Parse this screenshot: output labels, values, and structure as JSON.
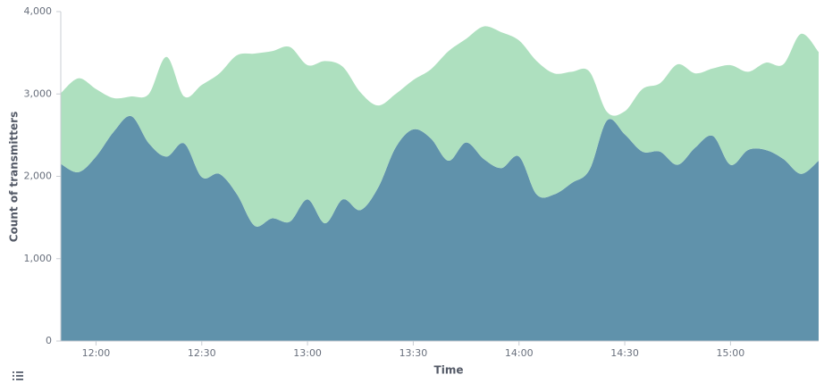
{
  "chart_data": {
    "type": "stacked-area",
    "x": [
      "11:50",
      "11:55",
      "12:00",
      "12:05",
      "12:10",
      "12:15",
      "12:20",
      "12:25",
      "12:30",
      "12:35",
      "12:40",
      "12:45",
      "12:50",
      "12:55",
      "13:00",
      "13:05",
      "13:10",
      "13:15",
      "13:20",
      "13:25",
      "13:30",
      "13:35",
      "13:40",
      "13:45",
      "13:50",
      "13:55",
      "14:00",
      "14:05",
      "14:10",
      "14:15",
      "14:20",
      "14:25",
      "14:30",
      "14:35",
      "14:40",
      "14:45",
      "14:50",
      "14:55",
      "15:00",
      "15:05",
      "15:10",
      "15:15",
      "15:20",
      "15:25"
    ],
    "series": [
      {
        "color": "#6092ab",
        "values": [
          2150,
          2050,
          2240,
          2540,
          2730,
          2400,
          2240,
          2400,
          1990,
          2030,
          1780,
          1400,
          1490,
          1450,
          1720,
          1430,
          1720,
          1590,
          1860,
          2350,
          2570,
          2460,
          2190,
          2410,
          2210,
          2100,
          2240,
          1780,
          1780,
          1920,
          2080,
          2680,
          2510,
          2300,
          2300,
          2140,
          2350,
          2490,
          2140,
          2320,
          2320,
          2210,
          2030,
          2190
        ]
      },
      {
        "color": "#aee0bf",
        "values": [
          860,
          1140,
          820,
          410,
          240,
          600,
          1210,
          570,
          1120,
          1220,
          1690,
          2090,
          2030,
          2120,
          1630,
          1970,
          1610,
          1430,
          1000,
          650,
          600,
          840,
          1330,
          1260,
          1610,
          1650,
          1410,
          1620,
          1470,
          1350,
          1190,
          100,
          280,
          760,
          830,
          1220,
          900,
          820,
          1210,
          950,
          1060,
          1150,
          1700,
          1320
        ]
      }
    ],
    "xlabel": "Time",
    "ylabel": "Count of transmitters",
    "xlim": [
      "11:50",
      "15:25"
    ],
    "xticks": [
      "12:00",
      "12:30",
      "13:00",
      "13:30",
      "14:00",
      "14:30",
      "15:00"
    ],
    "ylim": [
      0,
      4000
    ],
    "yticks": [
      0,
      {
        "value": 1000,
        "label": "1,000"
      },
      {
        "value": 2000,
        "label": "2,000"
      },
      {
        "value": 3000,
        "label": "3,000"
      },
      {
        "value": 4000,
        "label": "4,000"
      }
    ]
  }
}
